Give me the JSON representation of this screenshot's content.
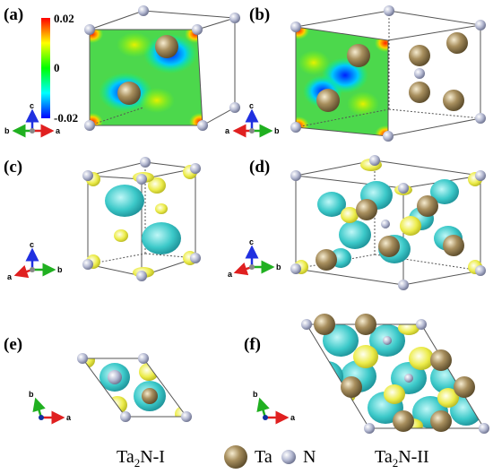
{
  "panels": {
    "a": {
      "label": "(a)"
    },
    "b": {
      "label": "(b)"
    },
    "c": {
      "label": "(c)"
    },
    "d": {
      "label": "(d)"
    },
    "e": {
      "label": "(e)"
    },
    "f": {
      "label": "(f)"
    }
  },
  "colorbar": {
    "max": "0.02",
    "mid": "0",
    "min": "-0.02",
    "colors": [
      "#ff0000",
      "#ffff00",
      "#00ff00",
      "#00ffff",
      "#0000ff"
    ]
  },
  "axes": {
    "a": "a",
    "b": "b",
    "c": "c"
  },
  "axis_colors": {
    "a": "#e02020",
    "b": "#20b020",
    "c": "#2030e0"
  },
  "atom_colors": {
    "Ta": "#9c8455",
    "N": "#a8aec8",
    "charge_gain": "#30c8c8",
    "charge_loss": "#e8e840"
  },
  "legend": {
    "phase1_base": "Ta",
    "phase1_sub": "2",
    "phase1_rest": "N-I",
    "ta_label": "Ta",
    "n_label": "N",
    "phase2_base": "Ta",
    "phase2_sub": "2",
    "phase2_rest": "N-II"
  }
}
